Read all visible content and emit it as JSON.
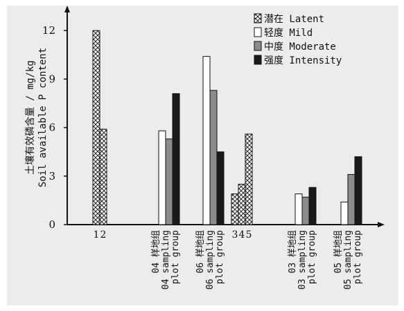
{
  "chart_data": {
    "type": "bar",
    "title": "",
    "xlabel": "",
    "ylabel_cn": "土壤有效磷含量 / mg/kg",
    "ylabel_en": "Soil available P content",
    "ylim": [
      0,
      12
    ],
    "yticks": [
      "0",
      "3",
      "6",
      "9",
      "12"
    ],
    "legend_position": "top-right",
    "series": [
      {
        "name": "潜在 Latent",
        "pattern": "crosshatch",
        "color": "#ffffff"
      },
      {
        "name": "轻度 Mild",
        "pattern": "solid",
        "color": "#ffffff"
      },
      {
        "name": "中度 Moderate",
        "pattern": "solid",
        "color": "#8c8c8c"
      },
      {
        "name": "强度 Intensity",
        "pattern": "solid",
        "color": "#1a1a1a"
      }
    ],
    "groups": [
      {
        "labels": [],
        "bars": [
          {
            "series": 0,
            "value": 12.0,
            "tick": "1"
          },
          {
            "series": 0,
            "value": 5.9,
            "tick": "2"
          }
        ]
      },
      {
        "labels": [
          "04 样地组",
          "04 sampling",
          "plot group"
        ],
        "bars": [
          {
            "series": 1,
            "value": 5.8
          },
          {
            "series": 2,
            "value": 5.3
          },
          {
            "series": 3,
            "value": 8.1
          }
        ]
      },
      {
        "labels": [
          "06 样地组",
          "06 sampling",
          "plot group"
        ],
        "bars": [
          {
            "series": 1,
            "value": 10.4
          },
          {
            "series": 2,
            "value": 8.3
          },
          {
            "series": 3,
            "value": 4.5
          }
        ]
      },
      {
        "labels": [],
        "bars": [
          {
            "series": 0,
            "value": 1.9,
            "tick": "3"
          },
          {
            "series": 0,
            "value": 2.5,
            "tick": "4"
          },
          {
            "series": 0,
            "value": 5.6,
            "tick": "5"
          }
        ]
      },
      {
        "labels": [
          "03 样地组",
          "03 sampling",
          "plot group"
        ],
        "bars": [
          {
            "series": 1,
            "value": 1.9
          },
          {
            "series": 2,
            "value": 1.7
          },
          {
            "series": 3,
            "value": 2.3
          }
        ]
      },
      {
        "labels": [
          "05 样地组",
          "05 sampling",
          "plot group"
        ],
        "bars": [
          {
            "series": 1,
            "value": 1.4
          },
          {
            "series": 2,
            "value": 3.1
          },
          {
            "series": 3,
            "value": 4.2
          }
        ]
      }
    ]
  }
}
